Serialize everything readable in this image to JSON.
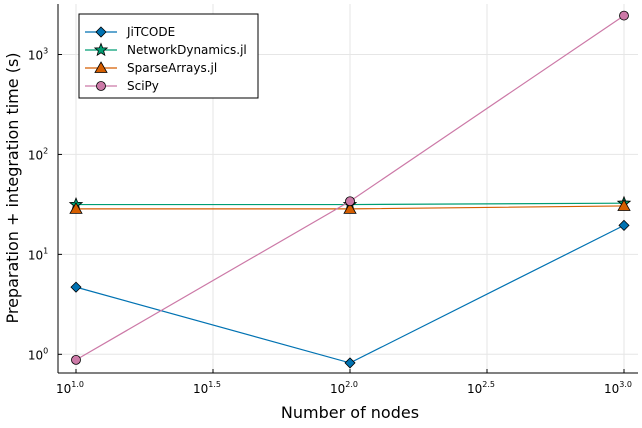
{
  "chart_data": {
    "type": "line",
    "xlabel": "Number of nodes",
    "ylabel": "Preparation + integration time (s)",
    "x_scale": "log10",
    "y_scale": "log10",
    "xlim": [
      10,
      1000
    ],
    "ylim": [
      0.65,
      3200
    ],
    "grid": true,
    "legend_position": "top-left",
    "x": [
      10,
      100,
      1000
    ],
    "x_ticks": [
      {
        "value": 10,
        "base": "10",
        "exp": "1.0"
      },
      {
        "value": 31.62,
        "base": "10",
        "exp": "1.5"
      },
      {
        "value": 100,
        "base": "10",
        "exp": "2.0"
      },
      {
        "value": 316.2,
        "base": "10",
        "exp": "2.5"
      },
      {
        "value": 1000,
        "base": "10",
        "exp": "3.0"
      }
    ],
    "y_ticks": [
      {
        "value": 1,
        "base": "10",
        "exp": "0"
      },
      {
        "value": 10,
        "base": "10",
        "exp": "1"
      },
      {
        "value": 100,
        "base": "10",
        "exp": "2"
      },
      {
        "value": 1000,
        "base": "10",
        "exp": "3"
      }
    ],
    "series": [
      {
        "name": "JiTCODE",
        "color": "#0072b2",
        "marker": "diamond",
        "values": [
          4.7,
          0.82,
          19.5
        ]
      },
      {
        "name": "NetworkDynamics.jl",
        "color": "#009e73",
        "marker": "star",
        "values": [
          31.5,
          31.5,
          32.5
        ]
      },
      {
        "name": "SparseArrays.jl",
        "color": "#d55e00",
        "marker": "triangle",
        "values": [
          28.5,
          28.5,
          30.5
        ]
      },
      {
        "name": "SciPy",
        "color": "#cc79a7",
        "marker": "circle",
        "values": [
          0.88,
          34,
          2450
        ]
      }
    ]
  }
}
